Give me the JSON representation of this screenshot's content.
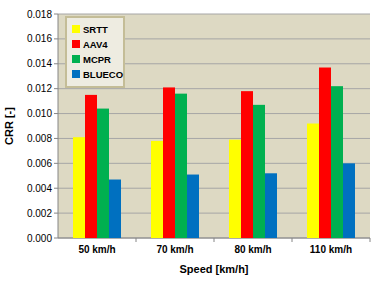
{
  "chart_data": {
    "type": "bar",
    "x_label": "Speed [km/h]",
    "y_label": "CRR [-]",
    "categories": [
      "50 km/h",
      "70 km/h",
      "80 km/h",
      "110 km/h"
    ],
    "series": [
      {
        "name": "SRTT",
        "color": "#ffff00",
        "values": [
          0.0081,
          0.0078,
          0.0079,
          0.0092
        ]
      },
      {
        "name": "AAV4",
        "color": "#ff0000",
        "values": [
          0.0115,
          0.0121,
          0.0118,
          0.0137
        ]
      },
      {
        "name": "MCPR",
        "color": "#00b050",
        "values": [
          0.0104,
          0.0116,
          0.0107,
          0.0122
        ]
      },
      {
        "name": "BLUECO",
        "color": "#0070c0",
        "values": [
          0.0047,
          0.0051,
          0.0052,
          0.006
        ]
      }
    ],
    "ylim": [
      0,
      0.018
    ],
    "yticks": [
      {
        "value": 0,
        "label": "0.000"
      },
      {
        "value": 0.002,
        "label": "0.002"
      },
      {
        "value": 0.004,
        "label": "0.004"
      },
      {
        "value": 0.006,
        "label": "0.006"
      },
      {
        "value": 0.008,
        "label": "0.008"
      },
      {
        "value": 0.01,
        "label": "0.010"
      },
      {
        "value": 0.012,
        "label": "0.012"
      },
      {
        "value": 0.014,
        "label": "0.014"
      },
      {
        "value": 0.016,
        "label": "0.016"
      },
      {
        "value": 0.018,
        "label": "0.018"
      }
    ],
    "grid": true,
    "legend": "upper left"
  }
}
